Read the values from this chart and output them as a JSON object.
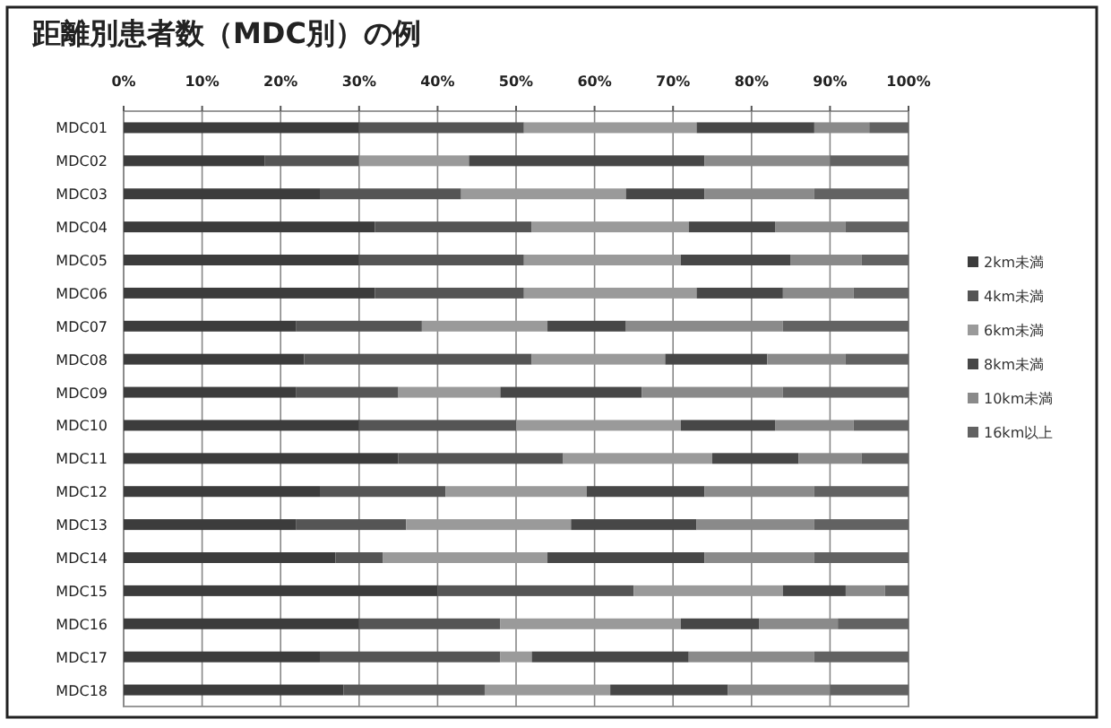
{
  "chart_data": {
    "type": "bar",
    "orientation": "horizontal",
    "stacked": true,
    "title": "距離別患者数（MDC別）の例",
    "categories": [
      "MDC01",
      "MDC02",
      "MDC03",
      "MDC04",
      "MDC05",
      "MDC06",
      "MDC07",
      "MDC08",
      "MDC09",
      "MDC10",
      "MDC11",
      "MDC12",
      "MDC13",
      "MDC14",
      "MDC15",
      "MDC16",
      "MDC17",
      "MDC18"
    ],
    "series": [
      {
        "name": "2km未満",
        "color": "#3c3c3c",
        "values": [
          30,
          18,
          25,
          32,
          30,
          32,
          22,
          23,
          22,
          30,
          35,
          25,
          22,
          27,
          40,
          30,
          25,
          28
        ]
      },
      {
        "name": "4km未満",
        "color": "#555555",
        "values": [
          21,
          12,
          18,
          20,
          21,
          19,
          16,
          29,
          13,
          20,
          21,
          16,
          14,
          6,
          25,
          18,
          23,
          18
        ]
      },
      {
        "name": "6km未満",
        "color": "#9a9a9a",
        "values": [
          22,
          14,
          21,
          20,
          20,
          22,
          16,
          17,
          13,
          21,
          19,
          18,
          21,
          21,
          19,
          23,
          4,
          16
        ]
      },
      {
        "name": "8km未満",
        "color": "#474747",
        "values": [
          15,
          30,
          10,
          11,
          14,
          11,
          10,
          13,
          18,
          12,
          11,
          15,
          16,
          20,
          8,
          10,
          20,
          15
        ]
      },
      {
        "name": "10km未満",
        "color": "#8a8a8a",
        "values": [
          7,
          16,
          14,
          9,
          9,
          9,
          20,
          10,
          18,
          10,
          8,
          14,
          15,
          14,
          5,
          10,
          16,
          13
        ]
      },
      {
        "name": "16km以上",
        "color": "#626262",
        "values": [
          5,
          10,
          12,
          8,
          6,
          7,
          16,
          8,
          16,
          7,
          6,
          12,
          12,
          12,
          3,
          9,
          12,
          10
        ]
      }
    ],
    "xlim": [
      0,
      100
    ],
    "xticks": [
      {
        "value": 0,
        "label": "0%"
      },
      {
        "value": 10,
        "label": "10%"
      },
      {
        "value": 20,
        "label": "20%"
      },
      {
        "value": 30,
        "label": "30%"
      },
      {
        "value": 40,
        "label": "40%"
      },
      {
        "value": 50,
        "label": "50%"
      },
      {
        "value": 60,
        "label": "60%"
      },
      {
        "value": 70,
        "label": "70%"
      },
      {
        "value": 80,
        "label": "80%"
      },
      {
        "value": 90,
        "label": "90%"
      },
      {
        "value": 100,
        "label": "100%"
      }
    ],
    "grid": "x",
    "legend": "right"
  }
}
